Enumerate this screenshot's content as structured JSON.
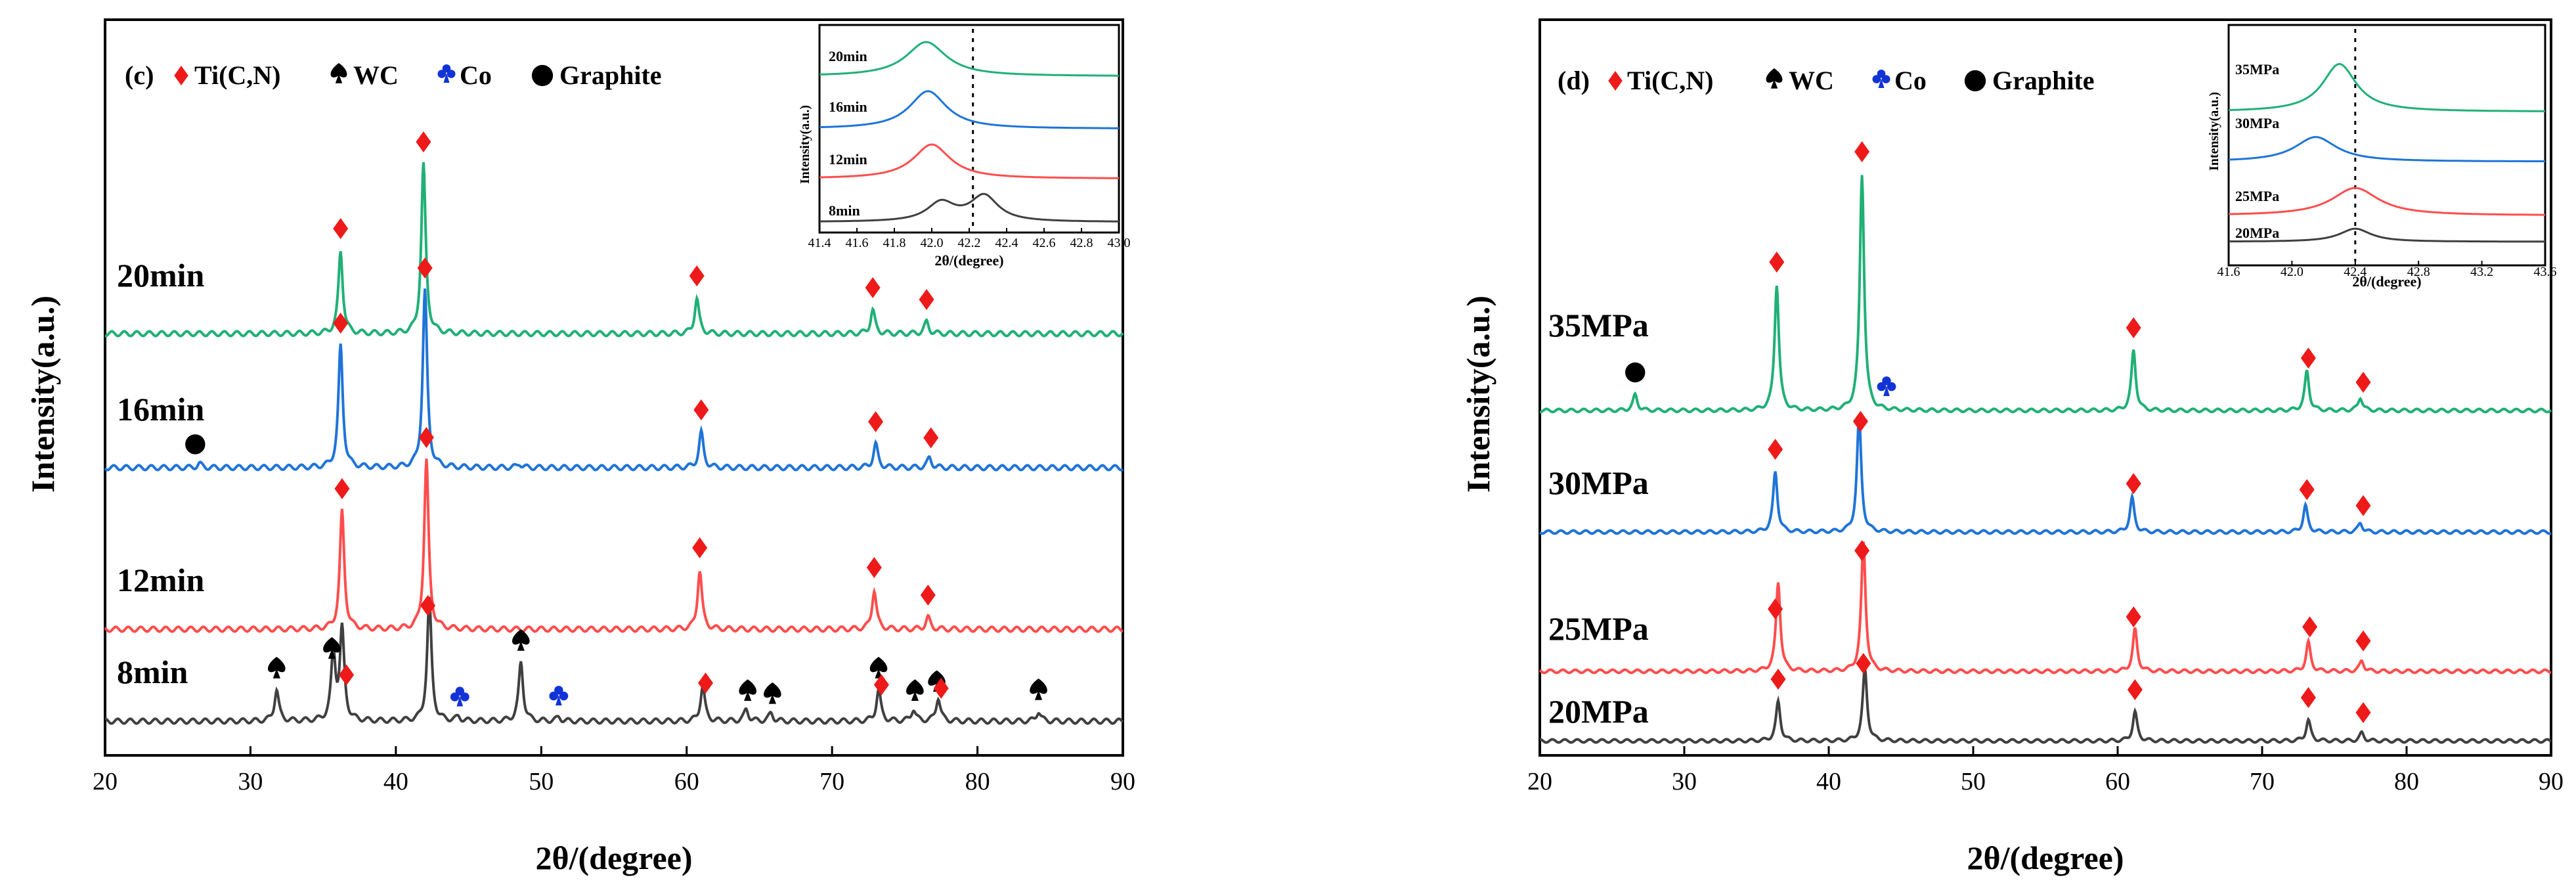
{
  "colors": {
    "black": "#404040",
    "red": "#ff4d4d",
    "blue": "#1f74d8",
    "green": "#20b077",
    "diamond": "#ee1a1a",
    "club": "#1233d6"
  },
  "legend": {
    "ticn": "Ti(C,N)",
    "wc": "WC",
    "co": "Co",
    "graphite": "Graphite"
  },
  "chart_data": [
    {
      "type": "line",
      "panel": "(c)",
      "xlabel": "2θ/(degree)",
      "ylabel": "Intensity(a.u.)",
      "xlim": [
        20,
        90
      ],
      "xticks": [
        20,
        30,
        40,
        50,
        60,
        70,
        80,
        90
      ],
      "series": [
        {
          "name": "8min",
          "color": "black",
          "baseline": 0.0,
          "peaks": [
            [
              31.8,
              0.16
            ],
            [
              35.7,
              0.34
            ],
            [
              36.3,
              0.46
            ],
            [
              42.3,
              0.62
            ],
            [
              44.3,
              0.02
            ],
            [
              48.6,
              0.3
            ],
            [
              51.2,
              0.02
            ],
            [
              61.1,
              0.18
            ],
            [
              64.1,
              0.06
            ],
            [
              65.8,
              0.04
            ],
            [
              73.2,
              0.16
            ],
            [
              75.6,
              0.06
            ],
            [
              77.3,
              0.12
            ],
            [
              84.2,
              0.05
            ]
          ],
          "markers": [
            [
              "wc",
              31.8
            ],
            [
              "wc",
              35.6
            ],
            [
              "ticn",
              36.6
            ],
            [
              "ticn",
              42.2
            ],
            [
              "co",
              44.4
            ],
            [
              "wc",
              48.6
            ],
            [
              "co",
              51.2
            ],
            [
              "ticn",
              61.3
            ],
            [
              "wc",
              64.2
            ],
            [
              "wc",
              65.9
            ],
            [
              "wc",
              73.2
            ],
            [
              "ticn",
              73.4
            ],
            [
              "wc",
              75.7
            ],
            [
              "wc",
              77.2
            ],
            [
              "ticn",
              77.5
            ],
            [
              "wc",
              84.2
            ]
          ]
        },
        {
          "name": "12min",
          "color": "red",
          "baseline": 0.64,
          "peaks": [
            [
              36.3,
              0.6
            ],
            [
              42.1,
              0.86
            ],
            [
              60.9,
              0.3
            ],
            [
              72.9,
              0.2
            ],
            [
              76.6,
              0.06
            ]
          ],
          "markers": [
            [
              "ticn",
              36.3
            ],
            [
              "ticn",
              42.1
            ],
            [
              "ticn",
              60.9
            ],
            [
              "ticn",
              72.9
            ],
            [
              "ticn",
              76.6
            ]
          ]
        },
        {
          "name": "16min",
          "color": "blue",
          "baseline": 1.61,
          "peaks": [
            [
              26.5,
              0.02
            ],
            [
              36.2,
              0.62
            ],
            [
              42.0,
              0.9
            ],
            [
              48.5,
              0.02
            ],
            [
              61.0,
              0.18
            ],
            [
              73.0,
              0.12
            ],
            [
              76.7,
              0.05
            ]
          ],
          "markers": [
            [
              "graphite",
              26.2
            ],
            [
              "ticn",
              36.2
            ],
            [
              "ticn",
              42.0
            ],
            [
              "ticn",
              61.0
            ],
            [
              "ticn",
              73.0
            ],
            [
              "ticn",
              76.8
            ]
          ]
        },
        {
          "name": "20min",
          "color": "green",
          "baseline": 2.47,
          "peaks": [
            [
              36.2,
              0.42
            ],
            [
              41.9,
              0.86
            ],
            [
              60.7,
              0.18
            ],
            [
              72.8,
              0.12
            ],
            [
              76.5,
              0.06
            ]
          ],
          "markers": [
            [
              "ticn",
              36.2
            ],
            [
              "ticn",
              41.9
            ],
            [
              "ticn",
              60.7
            ],
            [
              "ticn",
              72.8
            ],
            [
              "ticn",
              76.5
            ]
          ]
        }
      ],
      "inset": {
        "xlim": [
          41.4,
          43.0
        ],
        "xticks": [
          "41.4",
          "41.6",
          "41.8",
          "42.0",
          "42.2",
          "42.4",
          "42.6",
          "42.8",
          "43.0"
        ],
        "xlabel": "2θ/(degree)",
        "ylabel": "Intensity(a.u.)",
        "dashed_line_x": 42.22,
        "series": [
          {
            "name": "8min",
            "color": "black",
            "baseline": 0,
            "peaks": [
              [
                42.05,
                0.55,
                0.09
              ],
              [
                42.28,
                0.75,
                0.09
              ]
            ]
          },
          {
            "name": "12min",
            "color": "red",
            "baseline": 1.25,
            "peaks": [
              [
                42.0,
                1.0,
                0.12
              ]
            ]
          },
          {
            "name": "16min",
            "color": "blue",
            "baseline": 2.6,
            "peaks": [
              [
                41.98,
                1.1,
                0.12
              ]
            ]
          },
          {
            "name": "20min",
            "color": "green",
            "baseline": 3.9,
            "peaks": [
              [
                41.97,
                1.0,
                0.13
              ]
            ]
          }
        ]
      }
    },
    {
      "type": "line",
      "panel": "(d)",
      "xlabel": "2θ/(degree)",
      "ylabel": "Intensity(a.u.)",
      "xlim": [
        20,
        90
      ],
      "xticks": [
        20,
        30,
        40,
        50,
        60,
        70,
        80,
        90
      ],
      "series": [
        {
          "name": "20MPa",
          "color": "black",
          "baseline": 0.0,
          "peaks": [
            [
              36.5,
              0.3
            ],
            [
              42.5,
              0.55
            ],
            [
              61.2,
              0.22
            ],
            [
              73.2,
              0.16
            ],
            [
              76.9,
              0.06
            ]
          ],
          "markers": [
            [
              "ticn",
              36.5
            ],
            [
              "ticn",
              42.4
            ],
            [
              "ticn",
              61.2
            ],
            [
              "ticn",
              73.2
            ],
            [
              "ticn",
              77.0
            ]
          ]
        },
        {
          "name": "25MPa",
          "color": "red",
          "baseline": 0.55,
          "peaks": [
            [
              36.5,
              0.68
            ],
            [
              42.4,
              0.98
            ],
            [
              61.2,
              0.32
            ],
            [
              73.2,
              0.22
            ],
            [
              76.9,
              0.08
            ]
          ],
          "markers": [
            [
              "ticn",
              36.3
            ],
            [
              "ticn",
              42.3
            ],
            [
              "ticn",
              61.1
            ],
            [
              "ticn",
              73.3
            ],
            [
              "ticn",
              77.0
            ]
          ]
        },
        {
          "name": "30MPa",
          "color": "blue",
          "baseline": 1.72,
          "peaks": [
            [
              36.3,
              0.46
            ],
            [
              42.1,
              0.88
            ],
            [
              61.0,
              0.26
            ],
            [
              73.0,
              0.2
            ],
            [
              76.8,
              0.07
            ]
          ],
          "markers": [
            [
              "ticn",
              36.3
            ],
            [
              "ticn",
              42.2
            ],
            [
              "ticn",
              61.1
            ],
            [
              "ticn",
              73.1
            ],
            [
              "ticn",
              77.0
            ]
          ]
        },
        {
          "name": "35MPa",
          "color": "green",
          "baseline": 2.63,
          "peaks": [
            [
              26.6,
              0.12
            ],
            [
              36.4,
              0.96
            ],
            [
              42.3,
              1.8
            ],
            [
              61.1,
              0.46
            ],
            [
              73.1,
              0.3
            ],
            [
              76.8,
              0.1
            ]
          ],
          "markers": [
            [
              "graphite",
              26.6
            ],
            [
              "ticn",
              36.4
            ],
            [
              "ticn",
              42.3
            ],
            [
              "co",
              44.0
            ],
            [
              "ticn",
              61.1
            ],
            [
              "ticn",
              73.2
            ],
            [
              "ticn",
              77.0
            ]
          ]
        }
      ],
      "inset": {
        "xlim": [
          41.6,
          43.6
        ],
        "xticks": [
          "41.6",
          "42.0",
          "42.4",
          "42.8",
          "43.2",
          "43.6"
        ],
        "xlabel": "2θ/(degree)",
        "ylabel": "Intensity(a.u.)",
        "dashed_line_x": 42.4,
        "series": [
          {
            "name": "20MPa",
            "color": "black",
            "baseline": 0,
            "peaks": [
              [
                42.4,
                0.45,
                0.12
              ]
            ]
          },
          {
            "name": "25MPa",
            "color": "red",
            "baseline": 0.9,
            "peaks": [
              [
                42.4,
                0.95,
                0.18
              ]
            ]
          },
          {
            "name": "30MPa",
            "color": "blue",
            "baseline": 2.35,
            "peaks": [
              [
                42.15,
                0.85,
                0.16
              ]
            ]
          },
          {
            "name": "35MPa",
            "color": "green",
            "baseline": 3.4,
            "peaks": [
              [
                42.3,
                1.65,
                0.13
              ]
            ]
          }
        ]
      }
    }
  ]
}
